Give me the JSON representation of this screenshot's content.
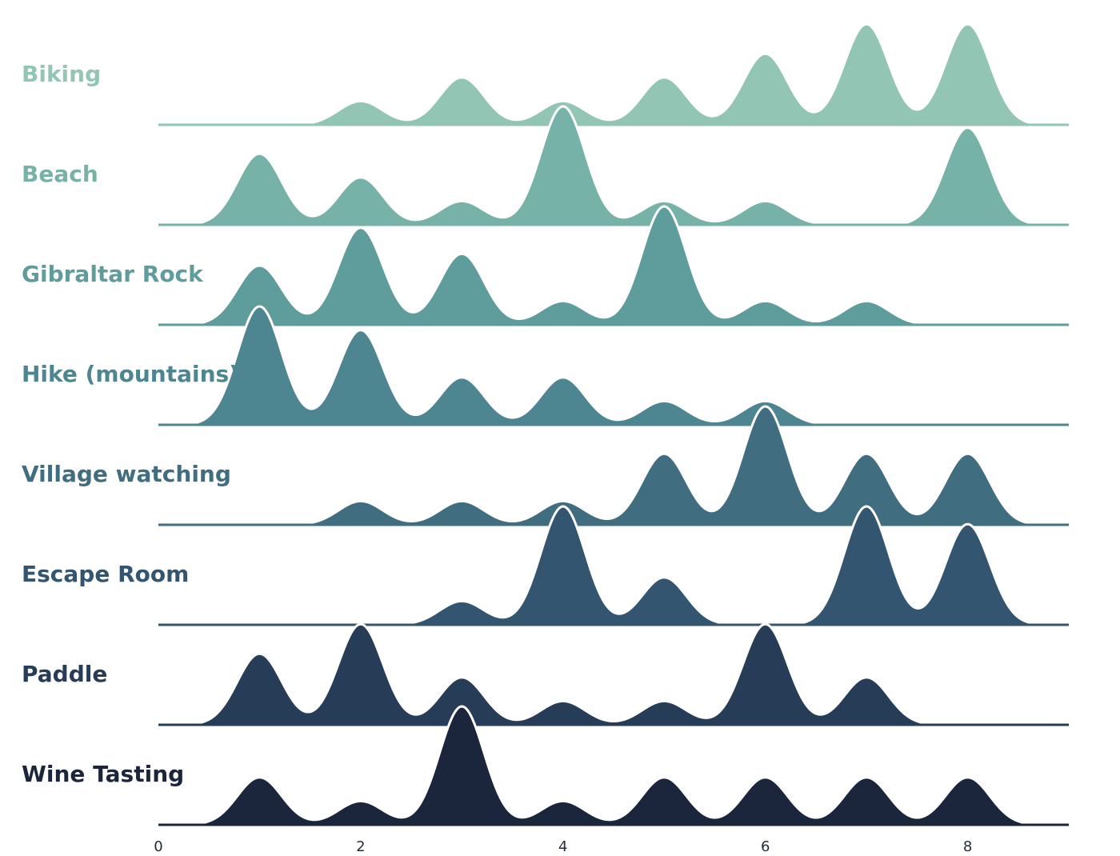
{
  "chart_data": {
    "type": "ridgeline",
    "title": "",
    "xlabel": "",
    "ylabel": "",
    "xlim": [
      0,
      9
    ],
    "x_ticks": [
      0,
      2,
      4,
      6,
      8
    ],
    "x_tick_labels": [
      "0",
      "2",
      "4",
      "6",
      "8"
    ],
    "categories": [
      1,
      2,
      3,
      4,
      5,
      6,
      7,
      8
    ],
    "grid": false,
    "legend": "none",
    "series": [
      {
        "name": "Biking",
        "color": "#92c5b4",
        "values": [
          0.0,
          0.2,
          0.4,
          0.2,
          0.4,
          0.6,
          0.85,
          0.85
        ]
      },
      {
        "name": "Beach",
        "color": "#76b2a7",
        "values": [
          0.6,
          0.4,
          0.2,
          1.0,
          0.2,
          0.2,
          0.0,
          0.82
        ]
      },
      {
        "name": "Gibraltar Rock",
        "color": "#5e9d9b",
        "values": [
          0.5,
          0.82,
          0.6,
          0.2,
          1.0,
          0.2,
          0.2,
          0.0
        ]
      },
      {
        "name": "Hike (mountains)",
        "color": "#4d8591",
        "values": [
          1.0,
          0.8,
          0.4,
          0.4,
          0.2,
          0.2,
          0.0,
          0.0
        ]
      },
      {
        "name": "Village watching",
        "color": "#406e80",
        "values": [
          0.0,
          0.2,
          0.2,
          0.2,
          0.6,
          1.0,
          0.6,
          0.6
        ]
      },
      {
        "name": "Escape Room",
        "color": "#33556f",
        "values": [
          0.0,
          0.0,
          0.2,
          1.0,
          0.4,
          0.0,
          1.0,
          0.85
        ]
      },
      {
        "name": "Paddle",
        "color": "#263c57",
        "values": [
          0.6,
          0.85,
          0.4,
          0.2,
          0.2,
          0.85,
          0.4,
          0.0
        ]
      },
      {
        "name": "Wine Tasting",
        "color": "#1b263d",
        "values": [
          0.4,
          0.2,
          1.0,
          0.2,
          0.4,
          0.4,
          0.4,
          0.4
        ]
      }
    ]
  }
}
